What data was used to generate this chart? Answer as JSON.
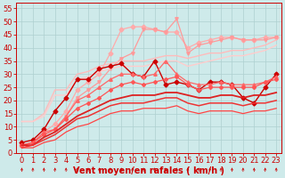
{
  "title": "",
  "xlabel": "Vent moyen/en rafales ( km/h )",
  "ylabel": "",
  "background_color": "#ceeaea",
  "grid_color": "#aed0d0",
  "xlim": [
    -0.5,
    23.5
  ],
  "ylim": [
    0,
    57
  ],
  "xticks": [
    0,
    1,
    2,
    3,
    4,
    5,
    6,
    7,
    8,
    9,
    10,
    11,
    12,
    13,
    14,
    15,
    16,
    17,
    18,
    19,
    20,
    21,
    22,
    23
  ],
  "yticks": [
    0,
    5,
    10,
    15,
    20,
    25,
    30,
    35,
    40,
    45,
    50,
    55
  ],
  "series": [
    {
      "x": [
        0,
        1,
        2,
        3,
        4,
        5,
        6,
        7,
        8,
        9,
        10,
        11,
        12,
        13,
        14,
        15,
        16,
        17,
        18,
        19,
        20,
        21,
        22,
        23
      ],
      "y": [
        3,
        4,
        8,
        11,
        16,
        24,
        27,
        30,
        38,
        47,
        48,
        48,
        47,
        46,
        46,
        40,
        42,
        43,
        44,
        44,
        43,
        43,
        44,
        44
      ],
      "color": "#ffaaaa",
      "marker": "D",
      "markersize": 2.5,
      "linewidth": 0.9
    },
    {
      "x": [
        0,
        1,
        2,
        3,
        4,
        5,
        6,
        7,
        8,
        9,
        10,
        11,
        12,
        13,
        14,
        15,
        16,
        17,
        18,
        19,
        20,
        21,
        22,
        23
      ],
      "y": [
        3,
        4,
        7,
        9,
        14,
        21,
        24,
        27,
        32,
        36,
        38,
        47,
        47,
        46,
        51,
        38,
        41,
        42,
        43,
        44,
        43,
        43,
        43,
        44
      ],
      "color": "#ff9999",
      "marker": "v",
      "markersize": 2.5,
      "linewidth": 0.9
    },
    {
      "x": [
        0,
        1,
        2,
        3,
        4,
        5,
        6,
        7,
        8,
        9,
        10,
        11,
        12,
        13,
        14,
        15,
        16,
        17,
        18,
        19,
        20,
        21,
        22,
        23
      ],
      "y": [
        12,
        12,
        15,
        24,
        24,
        30,
        31,
        33,
        34,
        35,
        35,
        35,
        36,
        37,
        37,
        36,
        37,
        38,
        38,
        39,
        39,
        40,
        41,
        43
      ],
      "color": "#ffbbbb",
      "marker": null,
      "markersize": 0,
      "linewidth": 1.0
    },
    {
      "x": [
        0,
        1,
        2,
        3,
        4,
        5,
        6,
        7,
        8,
        9,
        10,
        11,
        12,
        13,
        14,
        15,
        16,
        17,
        18,
        19,
        20,
        21,
        22,
        23
      ],
      "y": [
        12,
        12,
        14,
        22,
        22,
        28,
        29,
        31,
        32,
        33,
        33,
        33,
        34,
        35,
        35,
        33,
        34,
        35,
        36,
        37,
        37,
        38,
        39,
        41
      ],
      "color": "#ffcccc",
      "marker": null,
      "markersize": 0,
      "linewidth": 1.0
    },
    {
      "x": [
        0,
        1,
        2,
        3,
        4,
        5,
        6,
        7,
        8,
        9,
        10,
        11,
        12,
        13,
        14,
        15,
        16,
        17,
        18,
        19,
        20,
        21,
        22,
        23
      ],
      "y": [
        4,
        5,
        9,
        16,
        21,
        28,
        28,
        32,
        33,
        34,
        30,
        29,
        35,
        26,
        27,
        26,
        24,
        27,
        27,
        26,
        21,
        19,
        25,
        30
      ],
      "color": "#cc0000",
      "marker": "D",
      "markersize": 2.5,
      "linewidth": 1.0
    },
    {
      "x": [
        0,
        1,
        2,
        3,
        4,
        5,
        6,
        7,
        8,
        9,
        10,
        11,
        12,
        13,
        14,
        15,
        16,
        17,
        18,
        19,
        20,
        21,
        22,
        23
      ],
      "y": [
        3,
        4,
        8,
        9,
        14,
        20,
        22,
        25,
        28,
        30,
        30,
        29,
        30,
        35,
        30,
        27,
        26,
        26,
        27,
        26,
        26,
        26,
        27,
        29
      ],
      "color": "#ff6666",
      "marker": "^",
      "markersize": 2.5,
      "linewidth": 0.9
    },
    {
      "x": [
        0,
        1,
        2,
        3,
        4,
        5,
        6,
        7,
        8,
        9,
        10,
        11,
        12,
        13,
        14,
        15,
        16,
        17,
        18,
        19,
        20,
        21,
        22,
        23
      ],
      "y": [
        3,
        4,
        7,
        9,
        13,
        17,
        19,
        21,
        24,
        26,
        27,
        26,
        27,
        28,
        29,
        26,
        24,
        25,
        25,
        25,
        25,
        25,
        27,
        28
      ],
      "color": "#ff5555",
      "marker": "P",
      "markersize": 2.5,
      "linewidth": 0.9
    },
    {
      "x": [
        0,
        1,
        2,
        3,
        4,
        5,
        6,
        7,
        8,
        9,
        10,
        11,
        12,
        13,
        14,
        15,
        16,
        17,
        18,
        19,
        20,
        21,
        22,
        23
      ],
      "y": [
        3,
        3,
        6,
        8,
        11,
        14,
        16,
        18,
        20,
        21,
        22,
        22,
        22,
        23,
        23,
        22,
        21,
        21,
        22,
        22,
        21,
        22,
        22,
        23
      ],
      "color": "#dd2222",
      "marker": null,
      "markersize": 0,
      "linewidth": 1.3
    },
    {
      "x": [
        0,
        1,
        2,
        3,
        4,
        5,
        6,
        7,
        8,
        9,
        10,
        11,
        12,
        13,
        14,
        15,
        16,
        17,
        18,
        19,
        20,
        21,
        22,
        23
      ],
      "y": [
        2,
        3,
        5,
        7,
        10,
        13,
        14,
        16,
        18,
        19,
        19,
        19,
        20,
        21,
        21,
        19,
        18,
        19,
        19,
        19,
        18,
        19,
        19,
        20
      ],
      "color": "#ee3333",
      "marker": null,
      "markersize": 0,
      "linewidth": 1.1
    },
    {
      "x": [
        0,
        1,
        2,
        3,
        4,
        5,
        6,
        7,
        8,
        9,
        10,
        11,
        12,
        13,
        14,
        15,
        16,
        17,
        18,
        19,
        20,
        21,
        22,
        23
      ],
      "y": [
        2,
        2,
        4,
        5,
        8,
        10,
        11,
        13,
        15,
        16,
        16,
        17,
        17,
        17,
        18,
        16,
        15,
        16,
        16,
        16,
        15,
        16,
        16,
        17
      ],
      "color": "#ff4444",
      "marker": null,
      "markersize": 0,
      "linewidth": 0.9
    }
  ],
  "xlabel_color": "#cc0000",
  "xlabel_fontsize": 7,
  "tick_fontsize": 6
}
